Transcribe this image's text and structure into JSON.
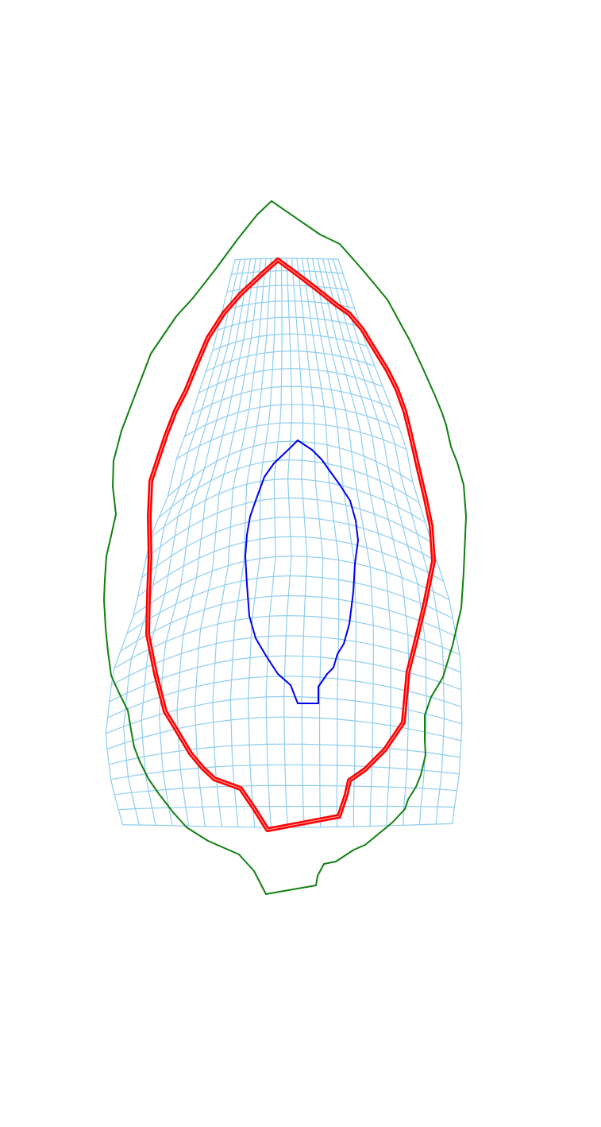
{
  "colors": {
    "background": "#ffffff",
    "grid": "#8ecdf0",
    "outer_contour": "#108010",
    "middle_contour": "#ff0000",
    "middle_contour_highlight": "#ffffff",
    "inner_contour": "#0000ee"
  },
  "diagram": {
    "description_elements": [
      "deformation-grid",
      "outer-contour",
      "middle-contour",
      "inner-contour"
    ]
  }
}
